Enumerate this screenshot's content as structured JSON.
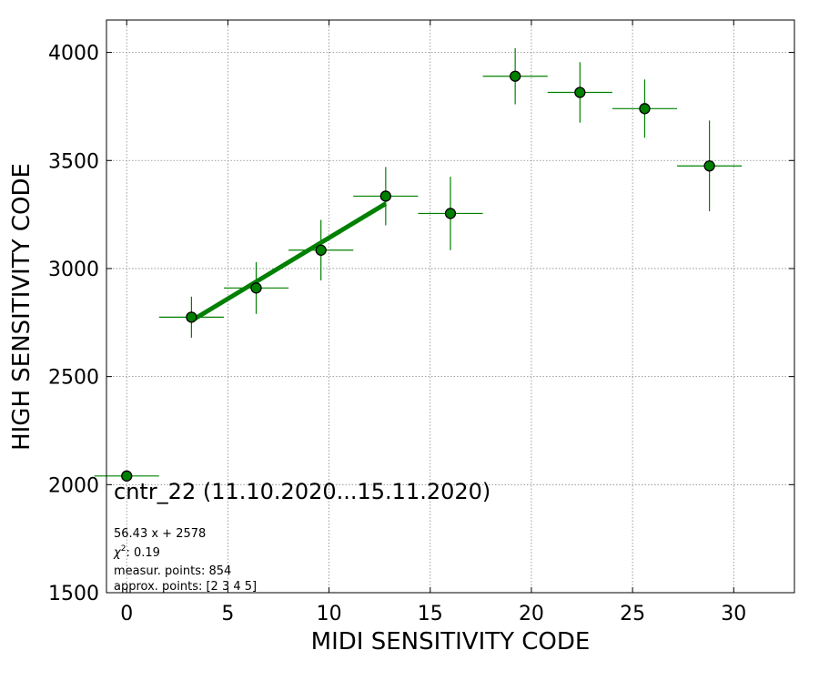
{
  "chart_data": {
    "type": "scatter",
    "xlabel": "MIDI SENSITIVITY CODE",
    "ylabel": "HIGH SENSITIVITY CODE",
    "xlim": [
      -1,
      33
    ],
    "ylim": [
      1500,
      4150
    ],
    "xticks": [
      0,
      5,
      10,
      15,
      20,
      25,
      30
    ],
    "yticks": [
      1500,
      2000,
      2500,
      3000,
      3500,
      4000
    ],
    "grid": true,
    "marker_color": "#008000",
    "fit_color": "#008000",
    "points": [
      {
        "x": 0,
        "y": 2040,
        "xerr": 1.6,
        "yerr": 0
      },
      {
        "x": 3.2,
        "y": 2775,
        "xerr": 1.6,
        "yerr": 95
      },
      {
        "x": 6.4,
        "y": 2910,
        "xerr": 1.6,
        "yerr": 120
      },
      {
        "x": 9.6,
        "y": 3085,
        "xerr": 1.6,
        "yerr": 140
      },
      {
        "x": 12.8,
        "y": 3335,
        "xerr": 1.6,
        "yerr": 135
      },
      {
        "x": 16.0,
        "y": 3255,
        "xerr": 1.6,
        "yerr": 170
      },
      {
        "x": 19.2,
        "y": 3890,
        "xerr": 1.6,
        "yerr": 130
      },
      {
        "x": 22.4,
        "y": 3815,
        "xerr": 1.6,
        "yerr": 140
      },
      {
        "x": 25.6,
        "y": 3740,
        "xerr": 1.6,
        "yerr": 135
      },
      {
        "x": 28.8,
        "y": 3475,
        "xerr": 1.6,
        "yerr": 210
      }
    ],
    "fit": {
      "slope": 56.43,
      "intercept": 2578,
      "x_range": [
        3.2,
        12.8
      ]
    },
    "annotation_title": "cntr_22 (11.10.2020...15.11.2020)",
    "annotation_lines": {
      "fit": "56.43 x + 2578",
      "chi2_label": "χ",
      "chi2_sup": "2",
      "chi2_value": ": 0.19",
      "measur": "measur. points: 854",
      "approx": "approx. points: [2 3 4 5]"
    }
  }
}
